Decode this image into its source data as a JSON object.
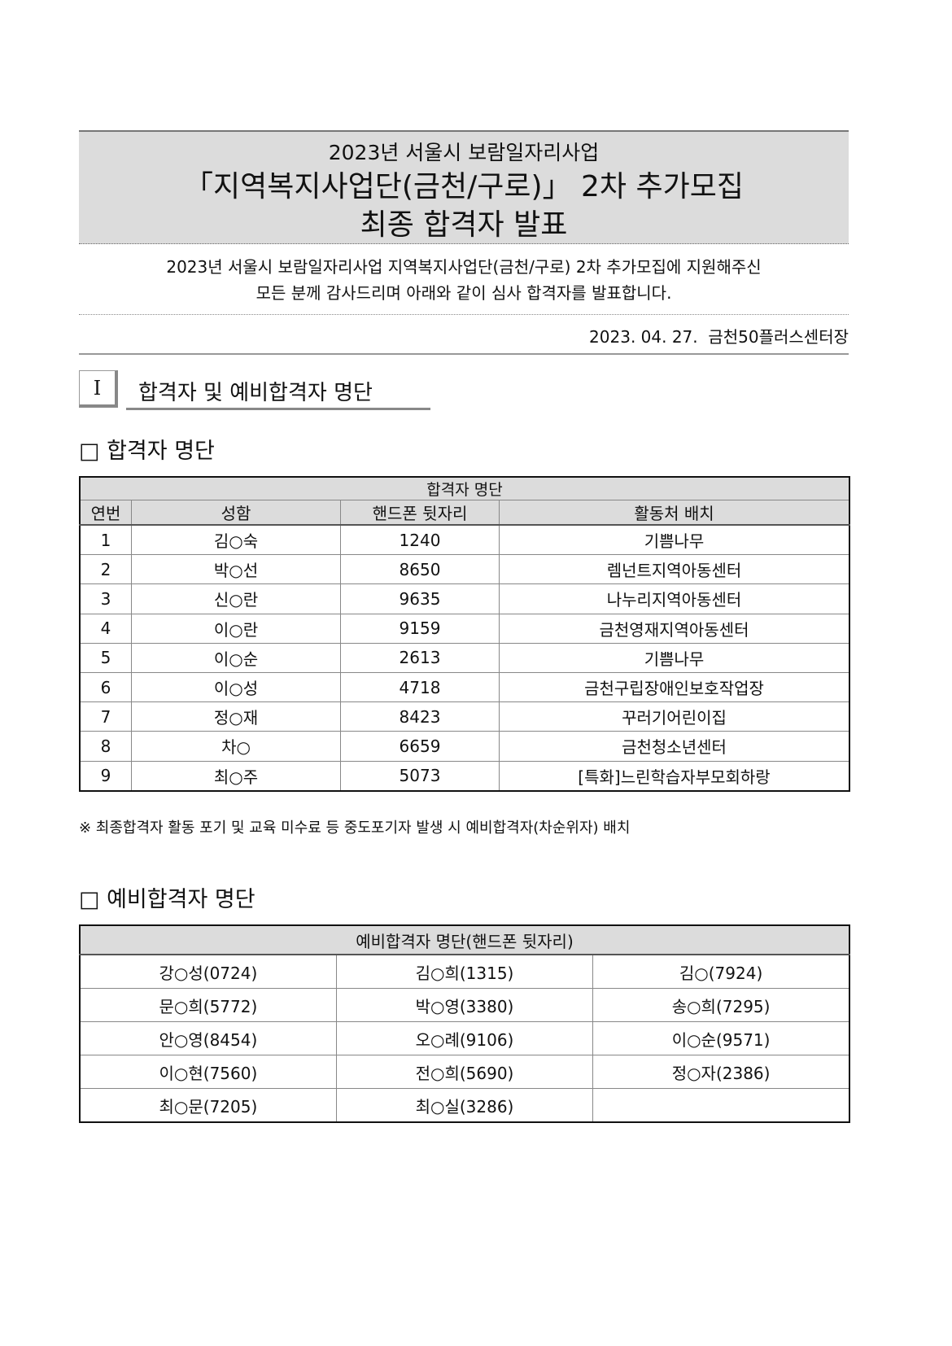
{
  "header": {
    "line1": "2023년 서울시 보람일자리사업",
    "line2": "「지역복지사업단(금천/구로)」 2차 추가모집",
    "line3": "최종 합격자 발표"
  },
  "intro": {
    "line1": "2023년 서울시 보람일자리사업 지역복지사업단(금천/구로) 2차 추가모집에 지원해주신",
    "line2": "모든 분께 감사드리며 아래와 같이 심사 합격자를 발표합니다."
  },
  "date_line": "2023. 04. 27.  금천50플러스센터장",
  "section": {
    "number": "Ⅰ",
    "title": "합격자 및 예비합격자 명단"
  },
  "passed": {
    "heading": "□ 합격자 명단",
    "caption": "합격자 명단",
    "columns": [
      "연번",
      "성함",
      "핸드폰 뒷자리",
      "활동처 배치"
    ],
    "rows": [
      [
        "1",
        "김○숙",
        "1240",
        "기쁨나무"
      ],
      [
        "2",
        "박○선",
        "8650",
        "렘넌트지역아동센터"
      ],
      [
        "3",
        "신○란",
        "9635",
        "나누리지역아동센터"
      ],
      [
        "4",
        "이○란",
        "9159",
        "금천영재지역아동센터"
      ],
      [
        "5",
        "이○순",
        "2613",
        "기쁨나무"
      ],
      [
        "6",
        "이○성",
        "4718",
        "금천구립장애인보호작업장"
      ],
      [
        "7",
        "정○재",
        "8423",
        "꾸러기어린이집"
      ],
      [
        "8",
        "차○",
        "6659",
        "금천청소년센터"
      ],
      [
        "9",
        "최○주",
        "5073",
        "[특화]느린학습자부모회하랑"
      ]
    ]
  },
  "note": "※ 최종합격자 활동 포기 및 교육 미수료 등 중도포기자 발생 시 예비합격자(차순위자) 배치",
  "reserve": {
    "heading": "□ 예비합격자 명단",
    "caption": "예비합격자 명단(핸드폰 뒷자리)",
    "rows": [
      [
        "강○성(0724)",
        "김○희(1315)",
        "김○(7924)"
      ],
      [
        "문○희(5772)",
        "박○영(3380)",
        "송○희(7295)"
      ],
      [
        "안○영(8454)",
        "오○례(9106)",
        "이○순(9571)"
      ],
      [
        "이○현(7560)",
        "전○희(5690)",
        "정○자(2386)"
      ],
      [
        "최○문(7205)",
        "최○실(3286)",
        ""
      ]
    ]
  }
}
